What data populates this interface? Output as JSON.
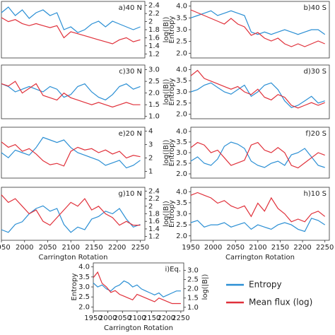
{
  "chart_data": [
    {
      "type": "line",
      "title": "a)40 N",
      "y2label": "log(|B|)",
      "x": [
        1950,
        1965,
        1980,
        1995,
        2010,
        2025,
        2040,
        2055,
        2070,
        2085,
        2100,
        2115,
        2130,
        2145,
        2160,
        2175,
        2190,
        2205,
        2220,
        2235,
        2250
      ],
      "xlim": [
        1950,
        2260
      ],
      "ylim": [
        2.0,
        4.0
      ],
      "y2lim": [
        1.1,
        2.5
      ],
      "y2ticks": [
        1.2,
        1.4,
        1.6,
        1.8,
        2.0,
        2.2,
        2.4
      ],
      "series": [
        {
          "name": "Entropy",
          "color": "#2b8fd4",
          "values": [
            3.6,
            3.8,
            3.5,
            3.7,
            3.4,
            3.6,
            3.7,
            3.5,
            3.6,
            3.0,
            3.1,
            2.9,
            3.0,
            3.2,
            3.3,
            3.1,
            3.3,
            3.2,
            3.1,
            3.0,
            3.1
          ]
        },
        {
          "name": "Mean flux (log)",
          "color": "#e0303a",
          "axis": "y2",
          "values": [
            2.1,
            2.0,
            2.05,
            1.95,
            1.9,
            1.95,
            1.9,
            1.85,
            1.9,
            1.6,
            1.75,
            1.7,
            1.65,
            1.6,
            1.55,
            1.5,
            1.45,
            1.55,
            1.6,
            1.5,
            1.55
          ]
        }
      ]
    },
    {
      "type": "line",
      "title": "b)40 S",
      "ylabel": "Entropy",
      "x": [
        1950,
        1965,
        1980,
        1995,
        2010,
        2025,
        2040,
        2055,
        2070,
        2085,
        2100,
        2115,
        2130,
        2145,
        2160,
        2175,
        2190,
        2205,
        2220,
        2235,
        2250
      ],
      "xlim": [
        1950,
        2260
      ],
      "ylim": [
        1.8,
        4.2
      ],
      "yticks": [
        {
          "value": 2,
          "label": "2.0"
        },
        2.5,
        {
          "value": 3,
          "label": "3.0"
        },
        3.5,
        {
          "value": 4,
          "label": "4.0"
        }
      ],
      "y2lim": [
        1.0,
        3.0
      ],
      "series": [
        {
          "name": "Entropy",
          "color": "#2b8fd4",
          "values": [
            3.5,
            3.6,
            3.7,
            3.8,
            3.6,
            3.7,
            3.8,
            3.7,
            3.6,
            2.9,
            2.8,
            2.9,
            2.8,
            2.9,
            3.0,
            2.9,
            2.8,
            2.9,
            3.0,
            3.0,
            2.8
          ]
        },
        {
          "name": "Mean flux (log)",
          "color": "#e0303a",
          "axis": "y2",
          "values": [
            2.7,
            2.6,
            2.5,
            2.4,
            2.3,
            2.2,
            2.4,
            2.2,
            2.1,
            1.8,
            1.9,
            1.7,
            1.6,
            1.7,
            1.5,
            1.4,
            1.5,
            1.4,
            1.5,
            1.6,
            1.5
          ]
        }
      ]
    },
    {
      "type": "line",
      "title": "c)30 N",
      "y2label": "log(|B|)",
      "x": [
        1950,
        1965,
        1980,
        1995,
        2010,
        2025,
        2040,
        2055,
        2070,
        2085,
        2100,
        2115,
        2130,
        2145,
        2160,
        2175,
        2190,
        2205,
        2220,
        2235,
        2250
      ],
      "xlim": [
        1950,
        2260
      ],
      "ylim": [
        2.0,
        4.0
      ],
      "y2lim": [
        0.9,
        3.2
      ],
      "y2ticks": [
        {
          "value": 1,
          "label": "1.0"
        },
        1.5,
        {
          "value": 2,
          "label": "2.0"
        },
        2.5,
        {
          "value": 3,
          "label": "3.0"
        }
      ],
      "series": [
        {
          "name": "Entropy",
          "color": "#2b8fd4",
          "values": [
            3.3,
            3.2,
            3.0,
            3.1,
            3.2,
            3.1,
            3.0,
            3.2,
            3.1,
            2.8,
            2.9,
            3.2,
            3.3,
            3.0,
            2.8,
            2.7,
            2.9,
            3.2,
            3.3,
            3.1,
            3.2
          ]
        },
        {
          "name": "Mean flux (log)",
          "color": "#e0303a",
          "axis": "y2",
          "values": [
            2.4,
            2.3,
            2.5,
            2.0,
            2.2,
            2.4,
            1.9,
            1.8,
            1.7,
            2.0,
            1.8,
            1.7,
            1.6,
            1.5,
            1.6,
            1.5,
            1.4,
            1.5,
            1.6,
            1.5,
            1.5
          ]
        }
      ]
    },
    {
      "type": "line",
      "title": "d)30 S",
      "ylabel": "Entropy",
      "x": [
        1950,
        1965,
        1980,
        1995,
        2010,
        2025,
        2040,
        2055,
        2070,
        2085,
        2100,
        2115,
        2130,
        2145,
        2160,
        2175,
        2190,
        2205,
        2220,
        2235,
        2250
      ],
      "xlim": [
        1950,
        2260
      ],
      "ylim": [
        1.8,
        4.2
      ],
      "yticks": [
        {
          "value": 2,
          "label": "2.0"
        },
        2.5,
        {
          "value": 3,
          "label": "3.0"
        },
        3.5,
        {
          "value": 4,
          "label": "4.0"
        }
      ],
      "y2lim": [
        1.0,
        3.0
      ],
      "series": [
        {
          "name": "Entropy",
          "color": "#2b8fd4",
          "values": [
            3.0,
            3.1,
            3.3,
            3.4,
            3.2,
            3.0,
            2.9,
            3.1,
            3.3,
            2.8,
            3.0,
            3.3,
            3.4,
            3.1,
            2.6,
            2.3,
            2.4,
            2.6,
            2.8,
            2.5,
            2.6
          ]
        },
        {
          "name": "Mean flux (log)",
          "color": "#e0303a",
          "axis": "y2",
          "values": [
            2.6,
            2.8,
            2.5,
            2.4,
            2.3,
            2.2,
            2.1,
            2.2,
            2.0,
            1.9,
            2.1,
            1.8,
            1.7,
            1.9,
            1.8,
            1.5,
            1.4,
            1.5,
            1.6,
            1.5,
            1.6
          ]
        }
      ]
    },
    {
      "type": "line",
      "title": "e)20 N",
      "y2label": "log(|B|)",
      "x": [
        1950,
        1965,
        1980,
        1995,
        2010,
        2025,
        2040,
        2055,
        2070,
        2085,
        2100,
        2115,
        2130,
        2145,
        2160,
        2175,
        2190,
        2205,
        2220,
        2235,
        2250
      ],
      "xlim": [
        1950,
        2260
      ],
      "ylim": [
        2.0,
        4.0
      ],
      "y2lim": [
        0.5,
        4.3
      ],
      "y2ticks": [
        1,
        2,
        3,
        4
      ],
      "series": [
        {
          "name": "Entropy",
          "color": "#2b8fd4",
          "values": [
            3.0,
            2.8,
            3.1,
            3.0,
            2.9,
            3.2,
            3.6,
            3.5,
            3.4,
            3.5,
            3.2,
            3.0,
            2.9,
            2.8,
            2.7,
            2.5,
            2.6,
            2.7,
            2.4,
            2.5,
            2.7
          ]
        },
        {
          "name": "Mean flux (log)",
          "color": "#e0303a",
          "axis": "y2",
          "values": [
            3.2,
            2.8,
            3.0,
            2.5,
            2.7,
            2.3,
            1.8,
            1.5,
            1.6,
            1.4,
            2.5,
            2.8,
            2.6,
            2.7,
            2.4,
            2.6,
            2.3,
            2.5,
            2.0,
            2.2,
            2.1
          ]
        }
      ]
    },
    {
      "type": "line",
      "title": "f)20 S",
      "ylabel": "Entropy",
      "x": [
        1950,
        1965,
        1980,
        1995,
        2010,
        2025,
        2040,
        2055,
        2070,
        2085,
        2100,
        2115,
        2130,
        2145,
        2160,
        2175,
        2190,
        2205,
        2220,
        2235,
        2250
      ],
      "xlim": [
        1950,
        2260
      ],
      "ylim": [
        1.8,
        4.2
      ],
      "yticks": [
        {
          "value": 2,
          "label": "2.0"
        },
        2.5,
        {
          "value": 3,
          "label": "3.0"
        },
        3.5,
        {
          "value": 4,
          "label": "4.0"
        }
      ],
      "y2lim": [
        1.0,
        3.0
      ],
      "series": [
        {
          "name": "Entropy",
          "color": "#2b8fd4",
          "values": [
            2.6,
            2.8,
            2.5,
            2.4,
            2.7,
            3.3,
            3.5,
            3.4,
            3.2,
            2.6,
            2.4,
            2.3,
            2.5,
            2.6,
            2.4,
            2.9,
            3.0,
            3.2,
            2.8,
            2.4,
            2.3
          ]
        },
        {
          "name": "Mean flux (log)",
          "color": "#e0303a",
          "axis": "y2",
          "values": [
            2.2,
            2.4,
            2.3,
            2.0,
            2.1,
            1.8,
            1.5,
            1.6,
            1.7,
            2.3,
            2.4,
            2.1,
            2.0,
            2.2,
            2.0,
            1.5,
            1.4,
            1.6,
            1.8,
            2.0,
            1.9
          ]
        }
      ]
    },
    {
      "type": "line",
      "title": "g)10 N",
      "y2label": "log(|B|)",
      "xlabel": "Carrington Rotation",
      "x": [
        1950,
        1965,
        1980,
        1995,
        2010,
        2025,
        2040,
        2055,
        2070,
        2085,
        2100,
        2115,
        2130,
        2145,
        2160,
        2175,
        2190,
        2205,
        2220,
        2235,
        2250
      ],
      "xlim": [
        1950,
        2260
      ],
      "xticks": [
        1950,
        2000,
        2050,
        2100,
        2150,
        2200,
        2250
      ],
      "ylim": [
        2.0,
        4.0
      ],
      "y2lim": [
        1.1,
        2.5
      ],
      "y2ticks": [
        1.2,
        1.4,
        1.6,
        1.8,
        2.0,
        2.2,
        2.4
      ],
      "series": [
        {
          "name": "Entropy",
          "color": "#2b8fd4",
          "values": [
            2.4,
            2.3,
            2.6,
            2.7,
            3.0,
            3.2,
            3.3,
            3.1,
            3.2,
            2.6,
            2.3,
            2.5,
            2.4,
            2.8,
            2.9,
            3.1,
            3.0,
            3.2,
            2.8,
            2.5,
            2.6
          ]
        },
        {
          "name": "Mean flux (log)",
          "color": "#e0303a",
          "axis": "y2",
          "values": [
            2.3,
            2.1,
            2.2,
            2.0,
            1.8,
            1.9,
            1.6,
            1.5,
            1.7,
            1.9,
            2.1,
            2.0,
            2.2,
            1.9,
            2.0,
            1.8,
            1.7,
            1.5,
            1.6,
            1.5,
            1.5
          ]
        }
      ]
    },
    {
      "type": "line",
      "title": "h)10 S",
      "ylabel": "Entropy",
      "xlabel": "Carrington Rotation",
      "x": [
        1950,
        1965,
        1980,
        1995,
        2010,
        2025,
        2040,
        2055,
        2070,
        2085,
        2100,
        2115,
        2130,
        2145,
        2160,
        2175,
        2190,
        2205,
        2220,
        2235,
        2250
      ],
      "xlim": [
        1950,
        2260
      ],
      "xticks": [
        1950,
        2000,
        2050,
        2100,
        2150,
        2200,
        2250
      ],
      "ylim": [
        1.8,
        4.2
      ],
      "yticks": [
        {
          "value": 2,
          "label": "2.0"
        },
        2.5,
        {
          "value": 3,
          "label": "3.0"
        },
        3.5,
        {
          "value": 4,
          "label": "4.0"
        }
      ],
      "y2lim": [
        1.0,
        3.0
      ],
      "series": [
        {
          "name": "Entropy",
          "color": "#2b8fd4",
          "values": [
            2.6,
            2.7,
            2.4,
            2.5,
            2.5,
            2.6,
            2.4,
            2.5,
            2.6,
            2.3,
            2.5,
            2.4,
            2.3,
            2.5,
            2.6,
            2.5,
            2.3,
            2.2,
            2.8,
            2.7,
            2.5
          ]
        },
        {
          "name": "Mean flux (log)",
          "color": "#e0303a",
          "axis": "y2",
          "values": [
            2.7,
            2.8,
            2.7,
            2.6,
            2.4,
            2.5,
            2.3,
            2.2,
            2.3,
            1.9,
            2.4,
            2.1,
            2.6,
            2.2,
            2.0,
            1.7,
            1.8,
            1.7,
            2.0,
            2.1,
            1.9
          ]
        }
      ]
    },
    {
      "type": "line",
      "title": "i)Eq.",
      "ylabel": "Entropy",
      "y2label": "log(|B|)",
      "xlabel": "Carrington Rotation",
      "legend": "outside right",
      "x": [
        1950,
        1965,
        1980,
        1995,
        2010,
        2025,
        2040,
        2055,
        2070,
        2085,
        2100,
        2115,
        2130,
        2145,
        2160,
        2175,
        2190,
        2205,
        2220,
        2235,
        2250
      ],
      "xlim": [
        1950,
        2260
      ],
      "xticks": [
        1950,
        2000,
        2050,
        2100,
        2150,
        2200,
        2250
      ],
      "ylim": [
        1.8,
        4.2
      ],
      "yticks": [
        {
          "value": 2,
          "label": "2.0"
        },
        2.5,
        {
          "value": 3,
          "label": "3.0"
        },
        3.5,
        {
          "value": 4,
          "label": "4.0"
        }
      ],
      "y2lim": [
        0.8,
        3.4
      ],
      "y2ticks": [
        {
          "value": 1,
          "label": "1.0"
        },
        1.5,
        {
          "value": 2,
          "label": "2.0"
        },
        2.5,
        {
          "value": 3,
          "label": "3.0"
        }
      ],
      "series": [
        {
          "name": "Entropy",
          "color": "#2b8fd4",
          "values": [
            3.2,
            3.0,
            3.1,
            2.9,
            2.8,
            3.0,
            3.1,
            3.3,
            3.2,
            3.0,
            3.1,
            2.9,
            2.8,
            2.7,
            2.6,
            2.7,
            2.5,
            2.6,
            2.7,
            2.8,
            2.8
          ]
        },
        {
          "name": "Mean flux (log)",
          "color": "#e0303a",
          "axis": "y2",
          "values": [
            2.6,
            2.9,
            2.3,
            2.1,
            1.8,
            1.9,
            1.7,
            1.6,
            1.5,
            1.4,
            1.7,
            1.6,
            1.5,
            1.4,
            1.3,
            1.5,
            1.4,
            1.3,
            1.2,
            1.2,
            1.2
          ]
        }
      ]
    }
  ]
}
